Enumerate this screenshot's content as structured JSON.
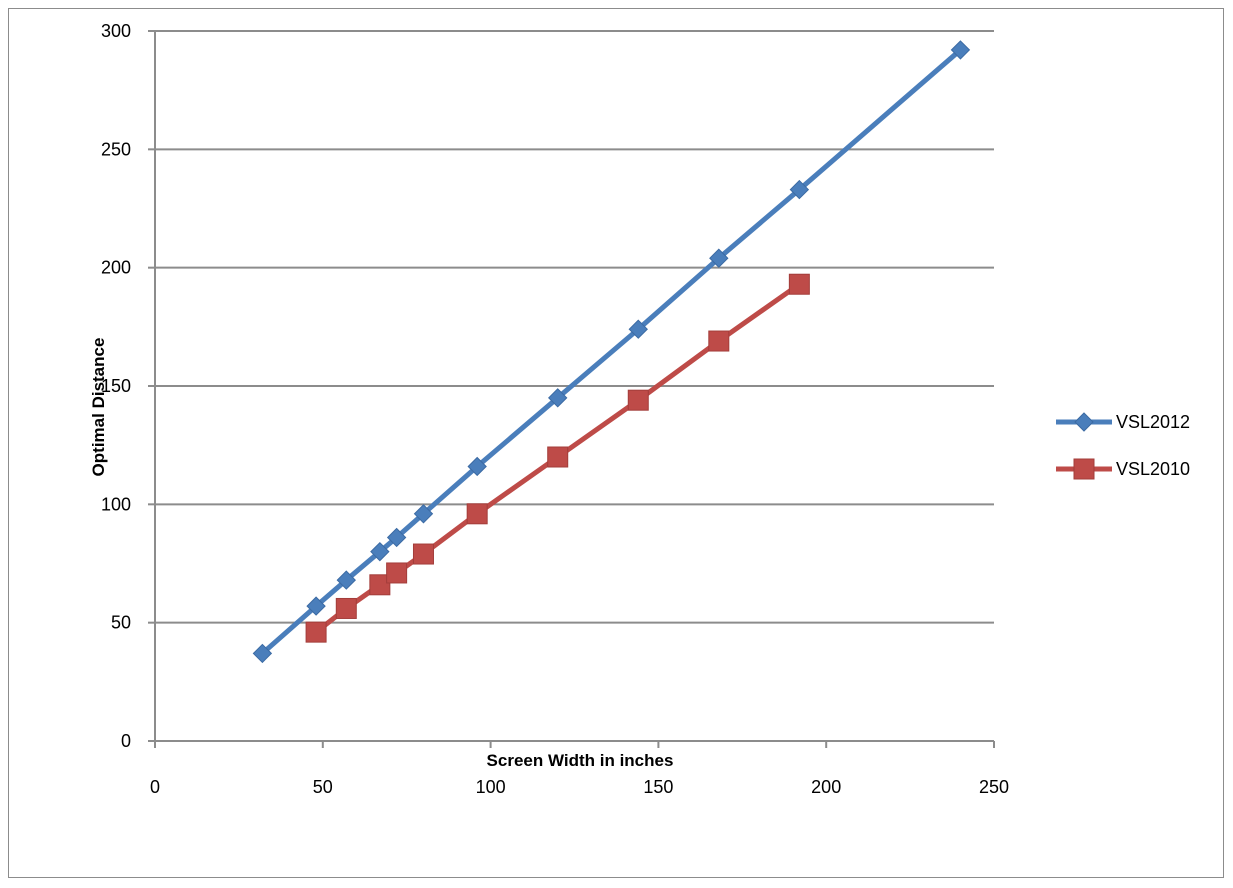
{
  "chart_data": {
    "type": "line",
    "xlabel": "Screen Width in inches",
    "ylabel": "Optimal Distance",
    "xlim": [
      0,
      250
    ],
    "ylim": [
      0,
      300
    ],
    "x_ticks": [
      "0",
      "50",
      "100",
      "150",
      "200",
      "250"
    ],
    "y_ticks": [
      "0",
      "50",
      "100",
      "150",
      "200",
      "250",
      "300"
    ],
    "grid": "horizontal",
    "legend_position": "right",
    "series": [
      {
        "name": "VSL2012",
        "color": "#4a7ebb",
        "marker": "diamond",
        "points": [
          [
            32,
            37
          ],
          [
            48,
            57
          ],
          [
            57,
            68
          ],
          [
            67,
            80
          ],
          [
            72,
            86
          ],
          [
            80,
            96
          ],
          [
            96,
            116
          ],
          [
            120,
            145
          ],
          [
            144,
            174
          ],
          [
            168,
            204
          ],
          [
            192,
            233
          ],
          [
            240,
            292
          ]
        ]
      },
      {
        "name": "VSL2010",
        "color": "#be4b48",
        "marker": "square",
        "points": [
          [
            48,
            46
          ],
          [
            57,
            56
          ],
          [
            67,
            66
          ],
          [
            72,
            71
          ],
          [
            80,
            79
          ],
          [
            96,
            96
          ],
          [
            120,
            120
          ],
          [
            144,
            144
          ],
          [
            168,
            169
          ],
          [
            192,
            193
          ]
        ]
      }
    ]
  }
}
